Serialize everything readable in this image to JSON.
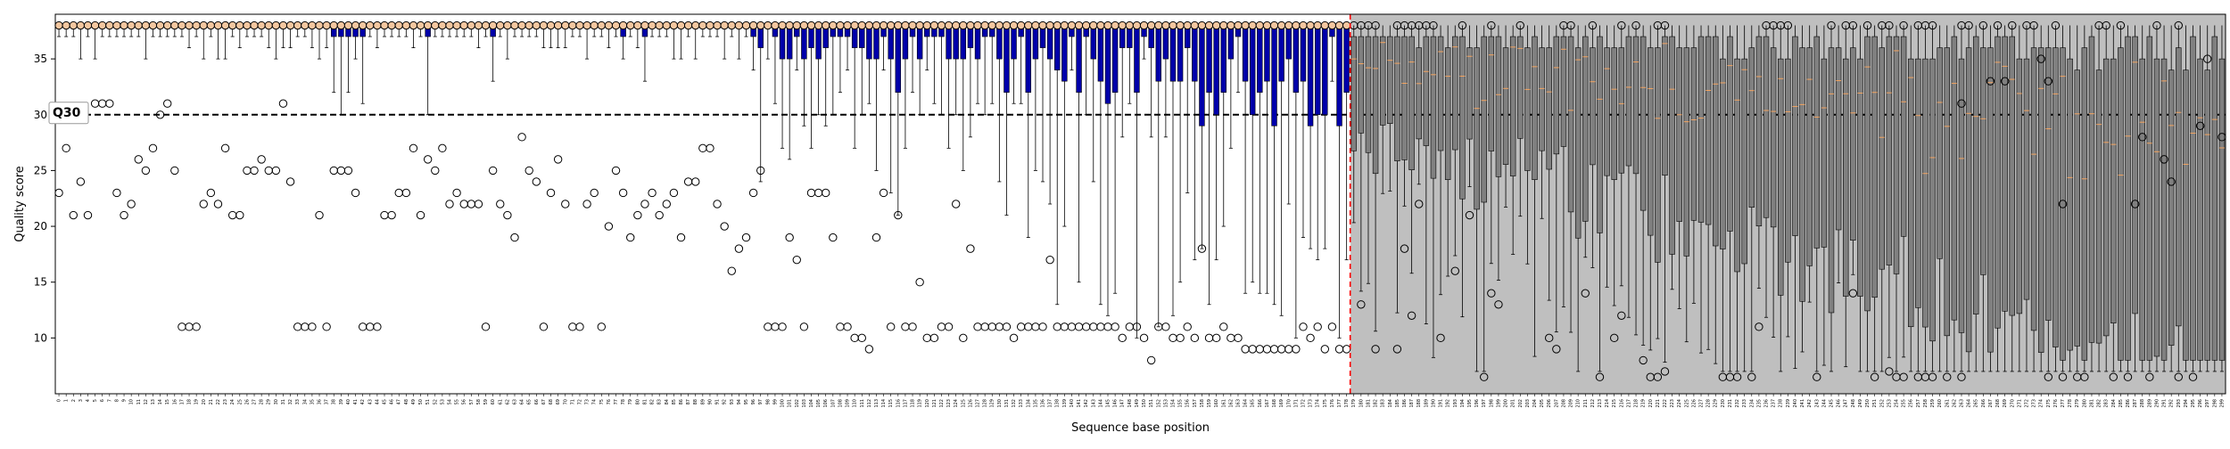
{
  "chart_data": {
    "type": "box",
    "xlabel": "Sequence base position",
    "ylabel": "Quality score",
    "ylim": [
      5,
      39
    ],
    "y_ticks": [
      10,
      15,
      20,
      25,
      30,
      35
    ],
    "x_range": [
      0,
      300
    ],
    "x_tick_labels_rotated": true,
    "threshold": {
      "y": 30,
      "label": "Q30",
      "style": "dashed"
    },
    "read_end_marker": {
      "x": 179,
      "style": "dashed",
      "color": "#ff0000"
    },
    "shaded_region": {
      "from": 179,
      "to": 300,
      "color": "#bfbfbf"
    },
    "colors": {
      "low_iqr_box": "#0000aa",
      "median_line": "#f4a460",
      "shaded_box": "#808080",
      "outlier_edge": "#000000"
    },
    "positions": 300,
    "summary": {
      "positions_0_to_178": {
        "median": 38,
        "upper_whisker": 38,
        "box_q1_typical": 37,
        "lower_whisker_range": [
          25,
          37
        ]
      },
      "positions_179_to_299": {
        "median_range": [
          30,
          37
        ],
        "box_q1_range": [
          7,
          33
        ],
        "lower_whisker_min": 7
      }
    },
    "outlier_samples": [
      {
        "x": 0,
        "y": 23
      },
      {
        "x": 1,
        "y": 27
      },
      {
        "x": 2,
        "y": 21
      },
      {
        "x": 3,
        "y": 24
      },
      {
        "x": 4,
        "y": 21
      },
      {
        "x": 5,
        "y": 31
      },
      {
        "x": 6,
        "y": 31
      },
      {
        "x": 7,
        "y": 31
      },
      {
        "x": 8,
        "y": 23
      },
      {
        "x": 9,
        "y": 21
      },
      {
        "x": 10,
        "y": 22
      },
      {
        "x": 11,
        "y": 26
      },
      {
        "x": 12,
        "y": 25
      },
      {
        "x": 13,
        "y": 27
      },
      {
        "x": 14,
        "y": 30
      },
      {
        "x": 15,
        "y": 31
      },
      {
        "x": 16,
        "y": 25
      },
      {
        "x": 17,
        "y": 11
      },
      {
        "x": 18,
        "y": 11
      },
      {
        "x": 19,
        "y": 11
      },
      {
        "x": 20,
        "y": 22
      },
      {
        "x": 21,
        "y": 23
      },
      {
        "x": 22,
        "y": 22
      },
      {
        "x": 23,
        "y": 27
      },
      {
        "x": 24,
        "y": 21
      },
      {
        "x": 25,
        "y": 21
      },
      {
        "x": 26,
        "y": 25
      },
      {
        "x": 27,
        "y": 25
      },
      {
        "x": 28,
        "y": 26
      },
      {
        "x": 29,
        "y": 25
      },
      {
        "x": 30,
        "y": 25
      },
      {
        "x": 31,
        "y": 31
      },
      {
        "x": 32,
        "y": 24
      },
      {
        "x": 33,
        "y": 11
      },
      {
        "x": 34,
        "y": 11
      },
      {
        "x": 35,
        "y": 11
      },
      {
        "x": 36,
        "y": 21
      },
      {
        "x": 37,
        "y": 11
      },
      {
        "x": 38,
        "y": 25
      },
      {
        "x": 39,
        "y": 25
      },
      {
        "x": 40,
        "y": 25
      },
      {
        "x": 41,
        "y": 23
      },
      {
        "x": 42,
        "y": 11
      },
      {
        "x": 43,
        "y": 11
      },
      {
        "x": 44,
        "y": 11
      },
      {
        "x": 45,
        "y": 21
      },
      {
        "x": 46,
        "y": 21
      },
      {
        "x": 47,
        "y": 23
      },
      {
        "x": 48,
        "y": 23
      },
      {
        "x": 49,
        "y": 27
      },
      {
        "x": 50,
        "y": 21
      },
      {
        "x": 51,
        "y": 26
      },
      {
        "x": 52,
        "y": 25
      },
      {
        "x": 53,
        "y": 27
      },
      {
        "x": 54,
        "y": 22
      },
      {
        "x": 55,
        "y": 23
      },
      {
        "x": 56,
        "y": 22
      },
      {
        "x": 57,
        "y": 22
      },
      {
        "x": 58,
        "y": 22
      },
      {
        "x": 59,
        "y": 11
      },
      {
        "x": 60,
        "y": 25
      },
      {
        "x": 61,
        "y": 22
      },
      {
        "x": 62,
        "y": 21
      },
      {
        "x": 63,
        "y": 19
      },
      {
        "x": 64,
        "y": 28
      },
      {
        "x": 65,
        "y": 25
      },
      {
        "x": 66,
        "y": 24
      },
      {
        "x": 67,
        "y": 11
      },
      {
        "x": 68,
        "y": 23
      },
      {
        "x": 69,
        "y": 26
      },
      {
        "x": 70,
        "y": 22
      },
      {
        "x": 71,
        "y": 11
      },
      {
        "x": 72,
        "y": 11
      },
      {
        "x": 73,
        "y": 22
      },
      {
        "x": 74,
        "y": 23
      },
      {
        "x": 75,
        "y": 11
      },
      {
        "x": 76,
        "y": 20
      },
      {
        "x": 77,
        "y": 25
      },
      {
        "x": 78,
        "y": 23
      },
      {
        "x": 79,
        "y": 19
      },
      {
        "x": 80,
        "y": 21
      },
      {
        "x": 81,
        "y": 22
      },
      {
        "x": 82,
        "y": 23
      },
      {
        "x": 83,
        "y": 21
      },
      {
        "x": 84,
        "y": 22
      },
      {
        "x": 85,
        "y": 23
      },
      {
        "x": 86,
        "y": 19
      },
      {
        "x": 87,
        "y": 24
      },
      {
        "x": 88,
        "y": 24
      },
      {
        "x": 89,
        "y": 27
      },
      {
        "x": 90,
        "y": 27
      },
      {
        "x": 91,
        "y": 22
      },
      {
        "x": 92,
        "y": 20
      },
      {
        "x": 93,
        "y": 16
      },
      {
        "x": 94,
        "y": 18
      },
      {
        "x": 95,
        "y": 19
      },
      {
        "x": 96,
        "y": 23
      },
      {
        "x": 97,
        "y": 25
      },
      {
        "x": 98,
        "y": 11
      },
      {
        "x": 99,
        "y": 11
      },
      {
        "x": 100,
        "y": 11
      },
      {
        "x": 101,
        "y": 19
      },
      {
        "x": 102,
        "y": 17
      },
      {
        "x": 103,
        "y": 11
      },
      {
        "x": 104,
        "y": 23
      },
      {
        "x": 105,
        "y": 23
      },
      {
        "x": 106,
        "y": 23
      },
      {
        "x": 107,
        "y": 19
      },
      {
        "x": 108,
        "y": 11
      },
      {
        "x": 109,
        "y": 11
      },
      {
        "x": 110,
        "y": 10
      },
      {
        "x": 111,
        "y": 10
      },
      {
        "x": 112,
        "y": 9
      },
      {
        "x": 113,
        "y": 19
      },
      {
        "x": 114,
        "y": 23
      },
      {
        "x": 115,
        "y": 11
      },
      {
        "x": 116,
        "y": 21
      },
      {
        "x": 117,
        "y": 11
      },
      {
        "x": 118,
        "y": 11
      },
      {
        "x": 119,
        "y": 15
      },
      {
        "x": 120,
        "y": 10
      },
      {
        "x": 121,
        "y": 10
      },
      {
        "x": 122,
        "y": 11
      },
      {
        "x": 123,
        "y": 11
      },
      {
        "x": 124,
        "y": 22
      },
      {
        "x": 125,
        "y": 10
      },
      {
        "x": 126,
        "y": 18
      },
      {
        "x": 127,
        "y": 11
      },
      {
        "x": 128,
        "y": 11
      },
      {
        "x": 129,
        "y": 11
      },
      {
        "x": 130,
        "y": 11
      },
      {
        "x": 131,
        "y": 11
      },
      {
        "x": 132,
        "y": 10
      },
      {
        "x": 133,
        "y": 11
      },
      {
        "x": 134,
        "y": 11
      },
      {
        "x": 135,
        "y": 11
      },
      {
        "x": 136,
        "y": 11
      },
      {
        "x": 137,
        "y": 17
      },
      {
        "x": 138,
        "y": 11
      },
      {
        "x": 139,
        "y": 11
      },
      {
        "x": 140,
        "y": 11
      },
      {
        "x": 141,
        "y": 11
      },
      {
        "x": 142,
        "y": 11
      },
      {
        "x": 143,
        "y": 11
      },
      {
        "x": 144,
        "y": 11
      },
      {
        "x": 145,
        "y": 11
      },
      {
        "x": 146,
        "y": 11
      },
      {
        "x": 147,
        "y": 10
      },
      {
        "x": 148,
        "y": 11
      },
      {
        "x": 149,
        "y": 11
      },
      {
        "x": 150,
        "y": 10
      },
      {
        "x": 151,
        "y": 8
      },
      {
        "x": 152,
        "y": 11
      },
      {
        "x": 153,
        "y": 11
      },
      {
        "x": 154,
        "y": 10
      },
      {
        "x": 155,
        "y": 10
      },
      {
        "x": 156,
        "y": 11
      },
      {
        "x": 157,
        "y": 10
      },
      {
        "x": 158,
        "y": 18
      },
      {
        "x": 159,
        "y": 10
      },
      {
        "x": 160,
        "y": 10
      },
      {
        "x": 161,
        "y": 11
      },
      {
        "x": 162,
        "y": 10
      },
      {
        "x": 163,
        "y": 10
      },
      {
        "x": 164,
        "y": 9
      },
      {
        "x": 165,
        "y": 9
      },
      {
        "x": 166,
        "y": 9
      },
      {
        "x": 167,
        "y": 9
      },
      {
        "x": 168,
        "y": 9
      },
      {
        "x": 169,
        "y": 9
      },
      {
        "x": 170,
        "y": 9
      },
      {
        "x": 171,
        "y": 9
      },
      {
        "x": 172,
        "y": 11
      },
      {
        "x": 173,
        "y": 10
      },
      {
        "x": 174,
        "y": 11
      },
      {
        "x": 175,
        "y": 9
      },
      {
        "x": 176,
        "y": 11
      },
      {
        "x": 177,
        "y": 9
      },
      {
        "x": 178,
        "y": 9
      }
    ]
  }
}
